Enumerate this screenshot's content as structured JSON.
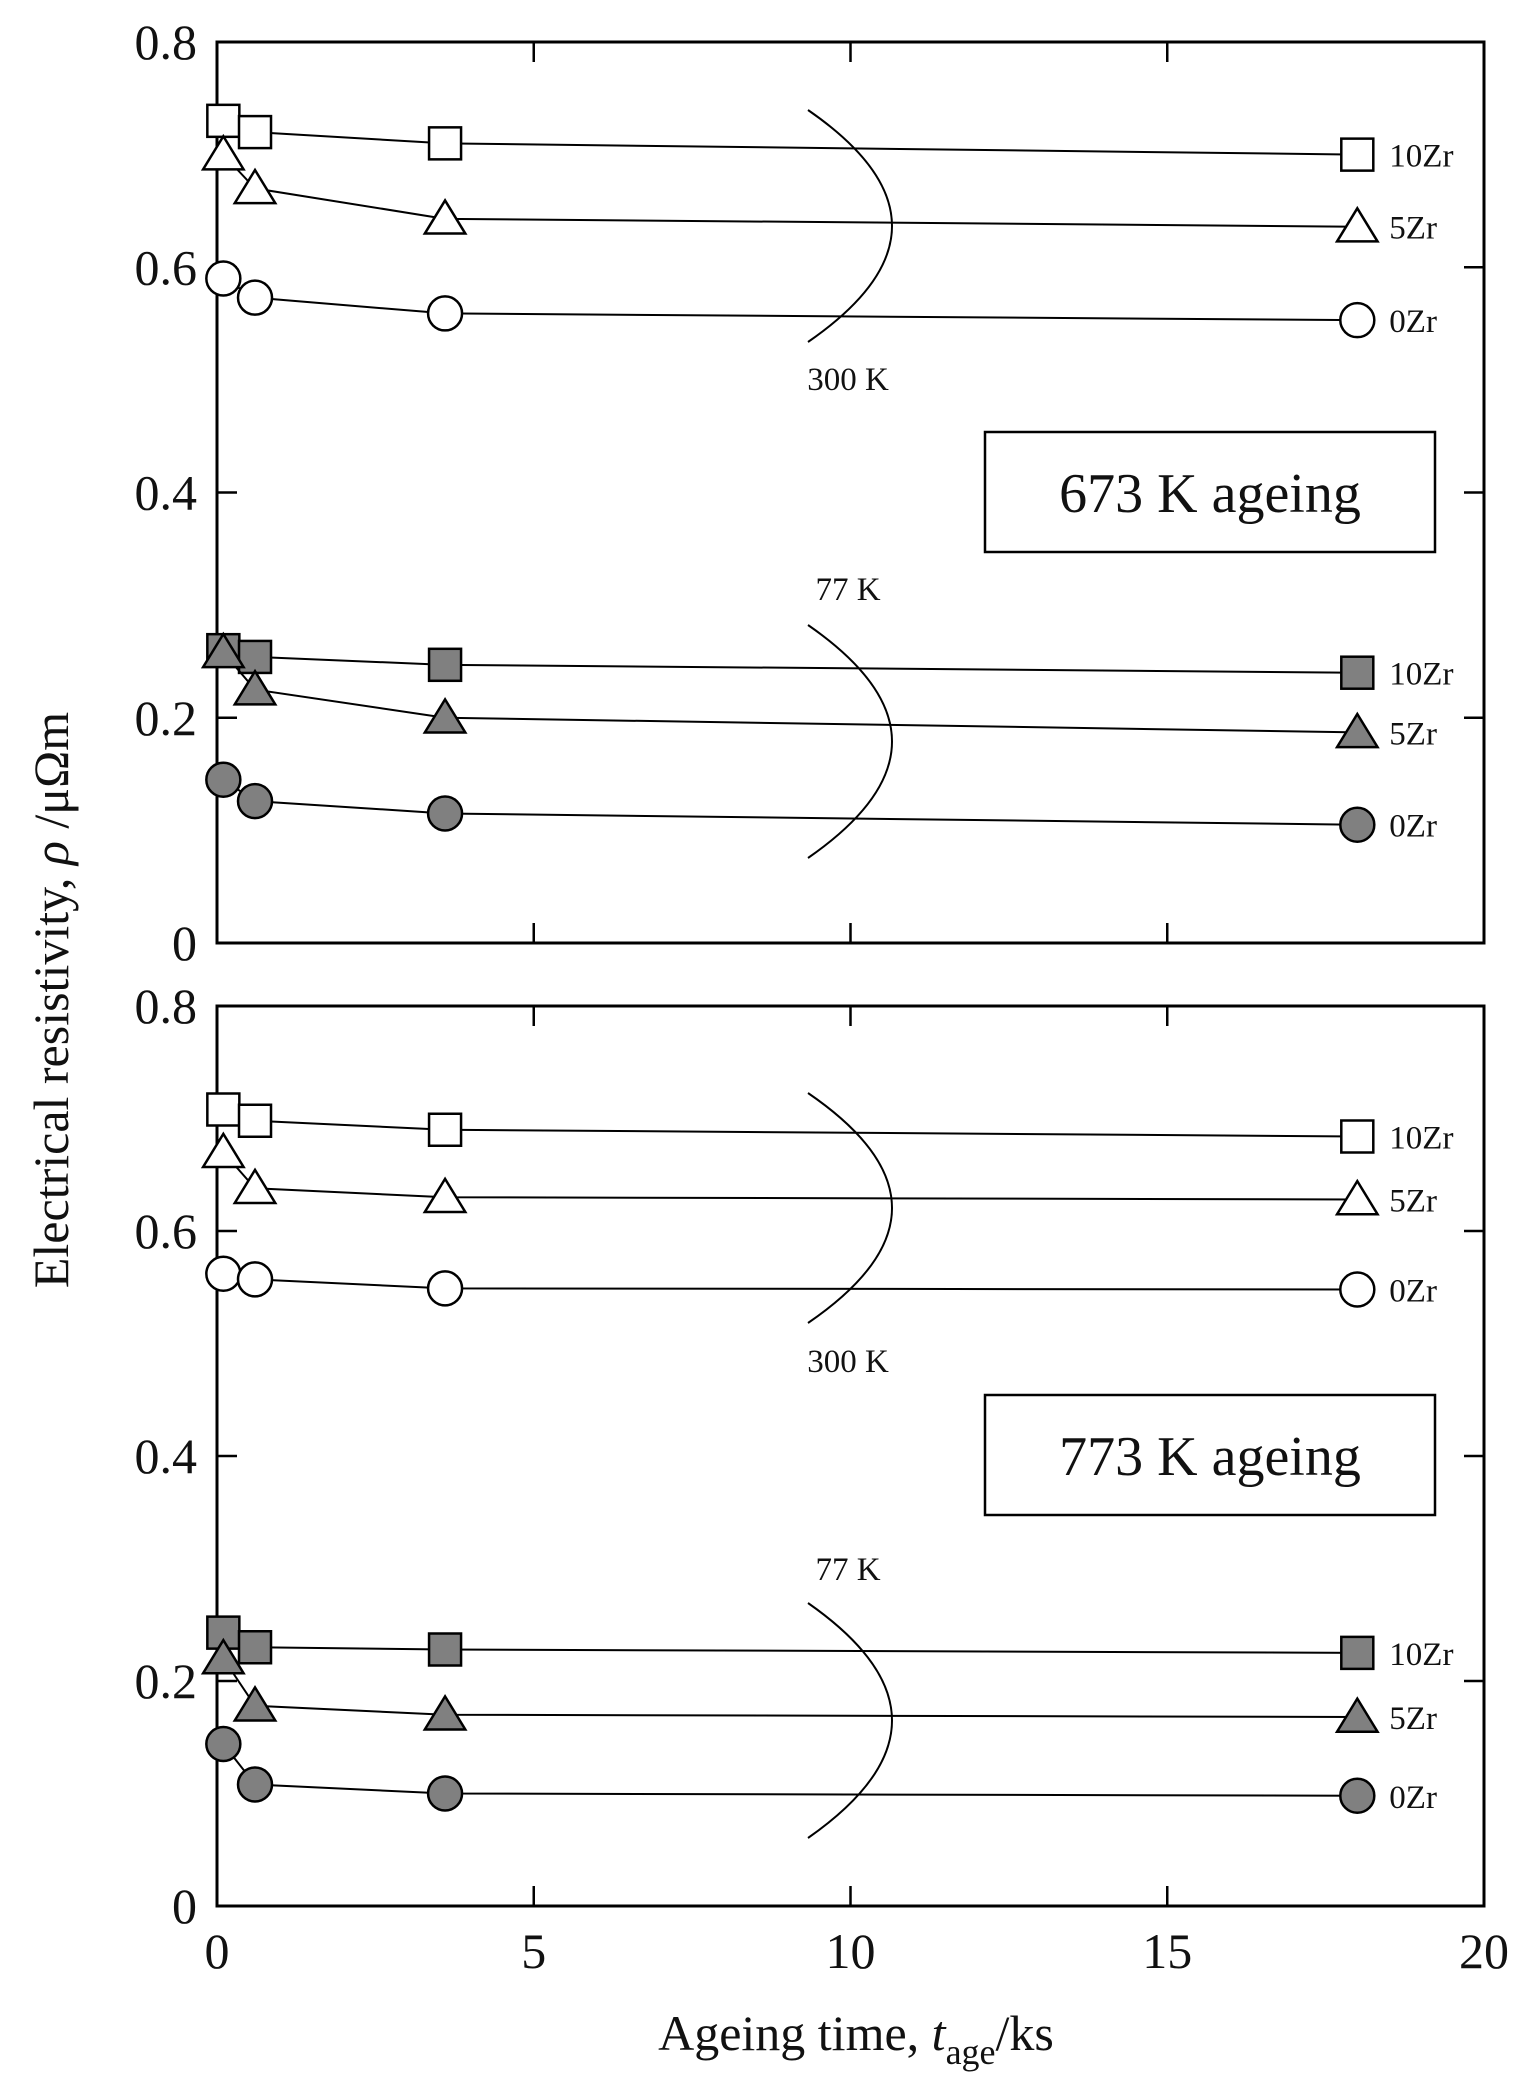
{
  "chart_data": [
    {
      "type": "line",
      "panel_label": "673 K ageing",
      "xlim": [
        0,
        20
      ],
      "ylim": [
        0,
        0.8
      ],
      "series": [
        {
          "name": "10Zr",
          "temperature": "300 K",
          "marker": "square",
          "filled": false,
          "x": [
            0.1,
            0.6,
            3.6,
            18.0
          ],
          "y": [
            0.73,
            0.72,
            0.71,
            0.7
          ]
        },
        {
          "name": "5Zr",
          "temperature": "300 K",
          "marker": "triangle",
          "filled": false,
          "x": [
            0.1,
            0.6,
            3.6,
            18.0
          ],
          "y": [
            0.7,
            0.67,
            0.643,
            0.636
          ]
        },
        {
          "name": "0Zr",
          "temperature": "300 K",
          "marker": "circle",
          "filled": false,
          "x": [
            0.1,
            0.6,
            3.6,
            18.0
          ],
          "y": [
            0.59,
            0.573,
            0.559,
            0.553
          ]
        },
        {
          "name": "10Zr",
          "temperature": "77 K",
          "marker": "square",
          "filled": true,
          "x": [
            0.1,
            0.6,
            3.6,
            18.0
          ],
          "y": [
            0.26,
            0.254,
            0.247,
            0.24
          ]
        },
        {
          "name": "5Zr",
          "temperature": "77 K",
          "marker": "triangle",
          "filled": true,
          "x": [
            0.1,
            0.6,
            3.6,
            18.0
          ],
          "y": [
            0.258,
            0.225,
            0.2,
            0.187
          ]
        },
        {
          "name": "0Zr",
          "temperature": "77 K",
          "marker": "circle",
          "filled": true,
          "x": [
            0.1,
            0.6,
            3.6,
            18.0
          ],
          "y": [
            0.145,
            0.126,
            0.115,
            0.105
          ]
        }
      ],
      "annotations": [
        "300 K",
        "77 K"
      ]
    },
    {
      "type": "line",
      "panel_label": "773 K ageing",
      "xlim": [
        0,
        20
      ],
      "ylim": [
        0,
        0.8
      ],
      "series": [
        {
          "name": "10Zr",
          "temperature": "300 K",
          "marker": "square",
          "filled": false,
          "x": [
            0.1,
            0.6,
            3.6,
            18.0
          ],
          "y": [
            0.708,
            0.698,
            0.69,
            0.684
          ]
        },
        {
          "name": "5Zr",
          "temperature": "300 K",
          "marker": "triangle",
          "filled": false,
          "x": [
            0.1,
            0.6,
            3.6,
            18.0
          ],
          "y": [
            0.67,
            0.638,
            0.63,
            0.628
          ]
        },
        {
          "name": "0Zr",
          "temperature": "300 K",
          "marker": "circle",
          "filled": false,
          "x": [
            0.1,
            0.6,
            3.6,
            18.0
          ],
          "y": [
            0.562,
            0.557,
            0.549,
            0.548
          ]
        },
        {
          "name": "10Zr",
          "temperature": "77 K",
          "marker": "square",
          "filled": true,
          "x": [
            0.1,
            0.6,
            3.6,
            18.0
          ],
          "y": [
            0.243,
            0.23,
            0.228,
            0.225
          ]
        },
        {
          "name": "5Zr",
          "temperature": "77 K",
          "marker": "triangle",
          "filled": true,
          "x": [
            0.1,
            0.6,
            3.6,
            18.0
          ],
          "y": [
            0.22,
            0.178,
            0.17,
            0.168
          ]
        },
        {
          "name": "0Zr",
          "temperature": "77 K",
          "marker": "circle",
          "filled": true,
          "x": [
            0.1,
            0.6,
            3.6,
            18.0
          ],
          "y": [
            0.144,
            0.108,
            0.1,
            0.098
          ]
        }
      ],
      "annotations": [
        "300 K",
        "77 K"
      ]
    }
  ],
  "axes": {
    "ylabel_main": "Electrical resistivity, ",
    "ylabel_symbol": "ρ",
    "ylabel_unit": " /μΩm",
    "xlabel_main": "Ageing time, ",
    "xlabel_symbol": "t",
    "xlabel_subscript": "age",
    "xlabel_unit": "/ks",
    "y_ticks": [
      "0",
      "0.2",
      "0.4",
      "0.6",
      "0.8"
    ],
    "x_ticks": [
      "0",
      "5",
      "10",
      "15",
      "20"
    ]
  },
  "colors": {
    "filled_marker": "#808080",
    "open_marker": "#ffffff",
    "line": "#000000"
  }
}
